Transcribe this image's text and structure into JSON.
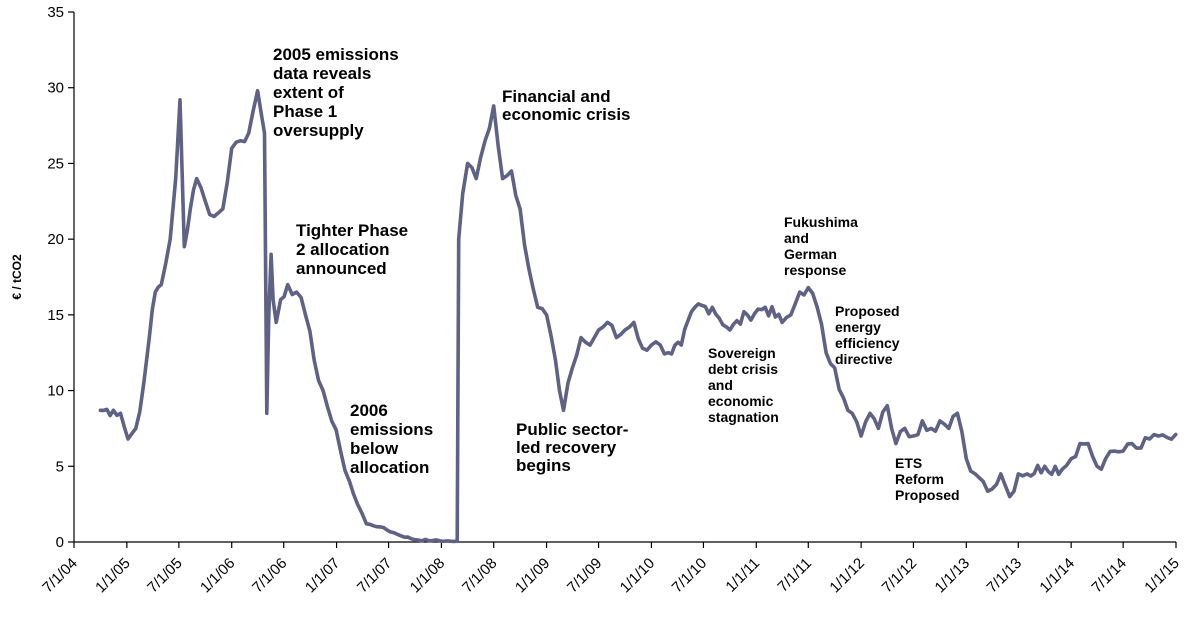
{
  "chart_data": {
    "type": "line",
    "title": "",
    "xlabel": "",
    "ylabel": "€ / tCO2",
    "ylim": [
      0,
      35
    ],
    "yticks": [
      0,
      5,
      10,
      15,
      20,
      25,
      30,
      35
    ],
    "xlim": [
      "2004-07-01",
      "2015-01-01"
    ],
    "xticks": [
      "7/1/04",
      "1/1/05",
      "7/1/05",
      "1/1/06",
      "7/1/06",
      "1/1/07",
      "7/1/07",
      "1/1/08",
      "7/1/08",
      "1/1/09",
      "7/1/09",
      "1/1/10",
      "7/1/10",
      "1/1/11",
      "7/1/11",
      "1/1/12",
      "7/1/12",
      "1/1/13",
      "7/1/13",
      "1/1/14",
      "7/1/14",
      "1/1/15"
    ],
    "grid": false,
    "legend": "none",
    "line_color": "#5f6185",
    "series": [
      {
        "x": [
          "2004-10-01",
          "2004-11-15",
          "2004-12-10",
          "2005-01-05",
          "2005-02-01",
          "2005-03-01",
          "2005-03-20",
          "2005-04-10",
          "2005-05-01",
          "2005-06-01",
          "2005-06-20",
          "2005-07-05",
          "2005-07-20",
          "2005-08-10",
          "2005-09-01",
          "2005-10-01",
          "2005-11-01",
          "2005-12-01",
          "2006-01-01",
          "2006-02-01",
          "2006-03-01",
          "2006-04-01",
          "2006-04-25",
          "2006-05-03",
          "2006-05-10",
          "2006-05-18",
          "2006-05-25",
          "2006-06-05",
          "2006-06-20",
          "2006-07-15",
          "2006-08-15",
          "2006-09-15",
          "2006-10-15",
          "2006-11-15",
          "2006-12-15",
          "2007-01-15",
          "2007-02-15",
          "2007-03-15",
          "2007-04-15",
          "2007-06-01",
          "2007-08-01",
          "2007-10-01",
          "2007-12-01",
          "2008-02-01",
          "2008-02-25",
          "2008-03-01",
          "2008-03-15",
          "2008-04-01",
          "2008-05-01",
          "2008-06-01",
          "2008-07-01",
          "2008-08-01",
          "2008-09-01",
          "2008-10-01",
          "2008-11-01",
          "2008-12-01",
          "2009-01-01",
          "2009-02-01",
          "2009-02-15",
          "2009-03-01",
          "2009-04-01",
          "2009-05-01",
          "2009-06-01",
          "2009-07-01",
          "2009-08-01",
          "2009-09-01",
          "2009-10-01",
          "2009-11-01",
          "2009-12-01",
          "2010-01-01",
          "2010-02-01",
          "2010-03-01",
          "2010-04-15",
          "2010-06-01",
          "2010-08-01",
          "2010-10-01",
          "2010-12-01",
          "2011-02-01",
          "2011-04-01",
          "2011-05-01",
          "2011-06-01",
          "2011-07-01",
          "2011-08-01",
          "2011-09-01",
          "2011-10-01",
          "2011-11-01",
          "2011-12-01",
          "2012-01-01",
          "2012-02-01",
          "2012-03-01",
          "2012-04-01",
          "2012-05-01",
          "2012-06-01",
          "2012-07-01",
          "2012-08-01",
          "2012-09-01",
          "2012-10-01",
          "2012-11-01",
          "2012-12-01",
          "2013-01-01",
          "2013-02-01",
          "2013-03-01",
          "2013-04-01",
          "2013-05-01",
          "2013-06-01",
          "2013-07-01",
          "2013-08-01",
          "2013-10-01",
          "2013-12-01",
          "2014-01-01",
          "2014-02-01",
          "2014-03-01",
          "2014-04-01",
          "2014-05-01",
          "2014-06-01",
          "2014-07-01",
          "2014-08-01",
          "2014-09-01",
          "2014-10-01",
          "2014-11-01",
          "2014-12-01",
          "2014-12-31"
        ],
        "values": [
          8.7,
          8.7,
          8.5,
          6.8,
          7.5,
          10.5,
          13.5,
          16.5,
          17.0,
          20.0,
          24.0,
          29.2,
          19.5,
          22.0,
          24.0,
          22.5,
          21.5,
          22.0,
          26.0,
          26.5,
          27.0,
          29.8,
          27.0,
          8.5,
          15.0,
          19.0,
          16.0,
          14.5,
          16.0,
          17.0,
          16.5,
          15.0,
          12.0,
          10.0,
          8.0,
          6.0,
          4.0,
          2.5,
          1.2,
          1.0,
          0.5,
          0.15,
          0.1,
          0.05,
          0.05,
          20.0,
          23.0,
          25.0,
          24.0,
          26.5,
          28.8,
          24.0,
          24.5,
          22.0,
          18.0,
          15.5,
          15.0,
          12.0,
          10.0,
          8.7,
          11.5,
          13.5,
          13.0,
          14.0,
          14.5,
          13.5,
          14.0,
          14.5,
          12.8,
          13.0,
          13.0,
          12.5,
          13.0,
          15.5,
          15.5,
          14.0,
          15.0,
          15.5,
          14.5,
          15.0,
          16.5,
          16.8,
          15.5,
          12.5,
          11.5,
          9.5,
          8.5,
          7.0,
          8.5,
          7.5,
          9.0,
          6.5,
          7.5,
          7.0,
          8.0,
          7.5,
          8.0,
          7.5,
          8.5,
          5.5,
          4.5,
          4.0,
          3.5,
          4.5,
          3.0,
          4.5,
          4.5,
          5.0,
          4.8,
          5.5,
          6.5,
          6.5,
          5.0,
          5.5,
          6.0,
          6.0,
          6.5,
          6.2,
          6.8,
          7.0,
          6.9,
          7.1
        ]
      }
    ],
    "annotations": [
      {
        "lines": [
          "2005 emissions",
          "data reveals",
          "extent of",
          "Phase 1",
          "oversupply"
        ]
      },
      {
        "lines": [
          "Tighter Phase",
          "2 allocation",
          "announced"
        ]
      },
      {
        "lines": [
          "2006",
          "emissions",
          "below",
          "allocation"
        ]
      },
      {
        "lines": [
          "Financial and",
          "economic crisis"
        ]
      },
      {
        "lines": [
          "Public sector-",
          "led recovery",
          "begins"
        ]
      },
      {
        "lines": [
          "Sovereign",
          "debt crisis",
          "and",
          "economic",
          "stagnation"
        ]
      },
      {
        "lines": [
          "Fukushima",
          "and",
          "German",
          "response"
        ]
      },
      {
        "lines": [
          "Proposed",
          "energy",
          "efficiency",
          "directive"
        ]
      },
      {
        "lines": [
          "ETS",
          "Reform",
          "Proposed"
        ]
      }
    ]
  }
}
